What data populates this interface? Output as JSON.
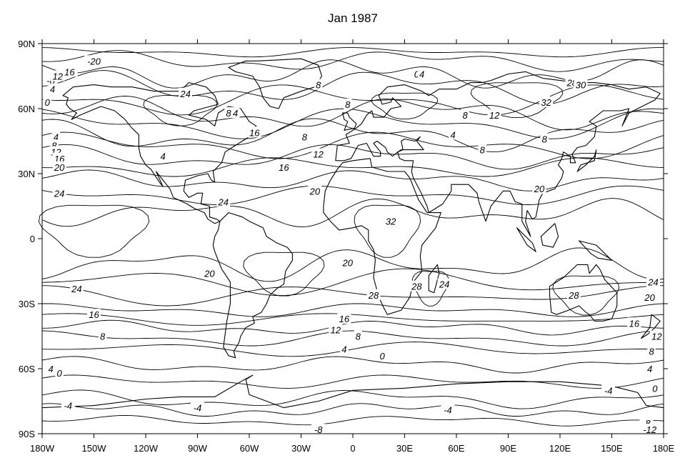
{
  "title": "Jan 1987",
  "map": {
    "projection": "cylindrical-equidistant",
    "lon_range": [
      -180,
      180
    ],
    "lat_range": [
      -90,
      90
    ],
    "coastlines": true,
    "contour_interval": 4,
    "line_color": "#000000",
    "background": "#ffffff"
  },
  "x_ticks": [
    {
      "value": -180,
      "label": "180W"
    },
    {
      "value": -150,
      "label": "150W"
    },
    {
      "value": -120,
      "label": "120W"
    },
    {
      "value": -90,
      "label": "90W"
    },
    {
      "value": -60,
      "label": "60W"
    },
    {
      "value": -30,
      "label": "30W"
    },
    {
      "value": 0,
      "label": "0"
    },
    {
      "value": 30,
      "label": "30E"
    },
    {
      "value": 60,
      "label": "60E"
    },
    {
      "value": 90,
      "label": "90E"
    },
    {
      "value": 120,
      "label": "120E"
    },
    {
      "value": 150,
      "label": "150E"
    },
    {
      "value": 180,
      "label": "180E"
    }
  ],
  "y_ticks": [
    {
      "value": 90,
      "label": "90N"
    },
    {
      "value": 60,
      "label": "60N"
    },
    {
      "value": 30,
      "label": "30N"
    },
    {
      "value": 0,
      "label": "0"
    },
    {
      "value": -30,
      "label": "30S"
    },
    {
      "value": -60,
      "label": "60S"
    },
    {
      "value": -90,
      "label": "90S"
    }
  ],
  "contour_labels": [
    {
      "text": "-20",
      "lon": -150,
      "lat": 82
    },
    {
      "text": "-16",
      "lon": -165,
      "lat": 77
    },
    {
      "text": "-8",
      "lon": -175,
      "lat": 73
    },
    {
      "text": "12",
      "lon": -171,
      "lat": 75
    },
    {
      "text": "4",
      "lon": -174,
      "lat": 69
    },
    {
      "text": "0",
      "lon": -177,
      "lat": 63
    },
    {
      "text": "24",
      "lon": -97,
      "lat": 67
    },
    {
      "text": "4",
      "lon": -172,
      "lat": 47
    },
    {
      "text": "8",
      "lon": -173,
      "lat": 43
    },
    {
      "text": "12",
      "lon": -172,
      "lat": 40
    },
    {
      "text": "16",
      "lon": -170,
      "lat": 37
    },
    {
      "text": "20",
      "lon": -170,
      "lat": 33
    },
    {
      "text": "24",
      "lon": -170,
      "lat": 21
    },
    {
      "text": "4",
      "lon": -110,
      "lat": 38
    },
    {
      "text": "24",
      "lon": -75,
      "lat": 17
    },
    {
      "text": "8",
      "lon": -20,
      "lat": 71
    },
    {
      "text": "4",
      "lon": -68,
      "lat": 58
    },
    {
      "text": "8",
      "lon": -72,
      "lat": 58
    },
    {
      "text": "16",
      "lon": -57,
      "lat": 49
    },
    {
      "text": "12",
      "lon": -20,
      "lat": 39
    },
    {
      "text": "16",
      "lon": -40,
      "lat": 33
    },
    {
      "text": "20",
      "lon": -22,
      "lat": 22
    },
    {
      "text": "0",
      "lon": 37,
      "lat": 76
    },
    {
      "text": "4",
      "lon": 40,
      "lat": 76
    },
    {
      "text": "8",
      "lon": -3,
      "lat": 62
    },
    {
      "text": "8",
      "lon": -28,
      "lat": 47
    },
    {
      "text": "4",
      "lon": 58,
      "lat": 48
    },
    {
      "text": "8",
      "lon": 65,
      "lat": 57
    },
    {
      "text": "12",
      "lon": 82,
      "lat": 57
    },
    {
      "text": "8",
      "lon": 75,
      "lat": 41
    },
    {
      "text": "8",
      "lon": 111,
      "lat": 46
    },
    {
      "text": "32",
      "lon": 112,
      "lat": 63
    },
    {
      "text": "28",
      "lon": 127,
      "lat": 72
    },
    {
      "text": "30",
      "lon": 132,
      "lat": 71
    },
    {
      "text": "20",
      "lon": 108,
      "lat": 23
    },
    {
      "text": "32",
      "lon": 22,
      "lat": 8
    },
    {
      "text": "20",
      "lon": -3,
      "lat": -11
    },
    {
      "text": "24",
      "lon": 53,
      "lat": -21
    },
    {
      "text": "20",
      "lon": -83,
      "lat": -16
    },
    {
      "text": "24",
      "lon": -160,
      "lat": -23
    },
    {
      "text": "16",
      "lon": -150,
      "lat": -35
    },
    {
      "text": "28",
      "lon": 12,
      "lat": -26
    },
    {
      "text": "28",
      "lon": 37,
      "lat": -22
    },
    {
      "text": "28",
      "lon": 128,
      "lat": -26
    },
    {
      "text": "16",
      "lon": -5,
      "lat": -37
    },
    {
      "text": "12",
      "lon": -10,
      "lat": -42
    },
    {
      "text": "8",
      "lon": 3,
      "lat": -45
    },
    {
      "text": "8",
      "lon": -145,
      "lat": -45
    },
    {
      "text": "4",
      "lon": -5,
      "lat": -51
    },
    {
      "text": "0",
      "lon": 17,
      "lat": -54
    },
    {
      "text": "4",
      "lon": -175,
      "lat": -60
    },
    {
      "text": "0",
      "lon": -170,
      "lat": -62
    },
    {
      "text": "24",
      "lon": 174,
      "lat": -20
    },
    {
      "text": "20",
      "lon": 172,
      "lat": -27
    },
    {
      "text": "16",
      "lon": 163,
      "lat": -39
    },
    {
      "text": "12",
      "lon": 176,
      "lat": -45
    },
    {
      "text": "8",
      "lon": 173,
      "lat": -52
    },
    {
      "text": "4",
      "lon": 172,
      "lat": -60
    },
    {
      "text": "0",
      "lon": 175,
      "lat": -69
    },
    {
      "text": "-4",
      "lon": 148,
      "lat": -70
    },
    {
      "text": "-4",
      "lon": -90,
      "lat": -78
    },
    {
      "text": "-4",
      "lon": 55,
      "lat": -79
    },
    {
      "text": "-8",
      "lon": -20,
      "lat": -88
    },
    {
      "text": "-8",
      "lon": 170,
      "lat": -85
    },
    {
      "text": "-12",
      "lon": 172,
      "lat": -88
    },
    {
      "text": "-4",
      "lon": -165,
      "lat": -77
    }
  ]
}
